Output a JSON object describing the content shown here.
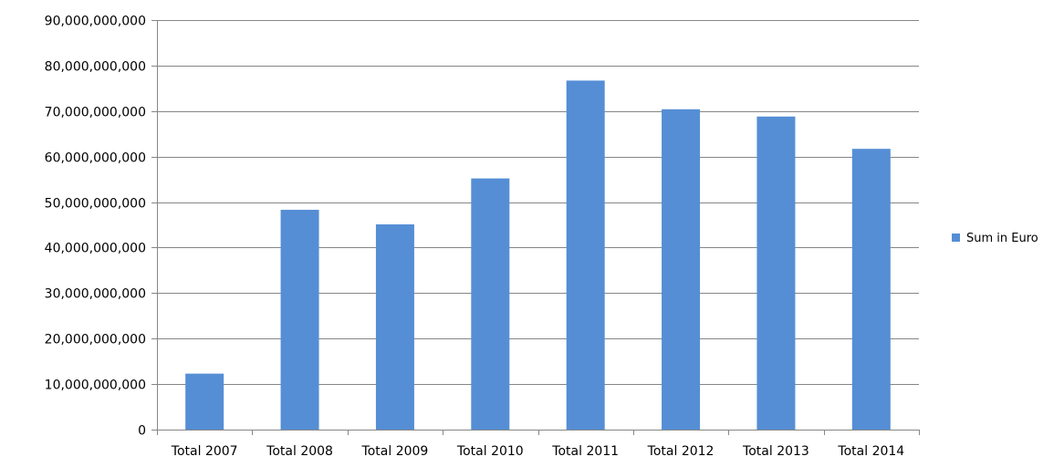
{
  "chart_data": {
    "type": "bar",
    "categories": [
      "Total 2007",
      "Total 2008",
      "Total 2009",
      "Total 2010",
      "Total 2011",
      "Total 2012",
      "Total 2013",
      "Total 2014"
    ],
    "series": [
      {
        "name": "Sum in Euro",
        "values": [
          12300000000,
          48300000000,
          45100000000,
          55200000000,
          76700000000,
          70400000000,
          68800000000,
          61700000000
        ],
        "color": "#558ED5"
      }
    ],
    "y_ticks": [
      "0",
      "10,000,000,000",
      "20,000,000,000",
      "30,000,000,000",
      "40,000,000,000",
      "50,000,000,000",
      "60,000,000,000",
      "70,000,000,000",
      "80,000,000,000",
      "90,000,000,000"
    ],
    "ylim": [
      0,
      90000000000
    ],
    "grid": true,
    "gridline_color": "#868686",
    "axis_color": "#868686",
    "legend_position": "right",
    "title": "",
    "xlabel": "",
    "ylabel": ""
  }
}
